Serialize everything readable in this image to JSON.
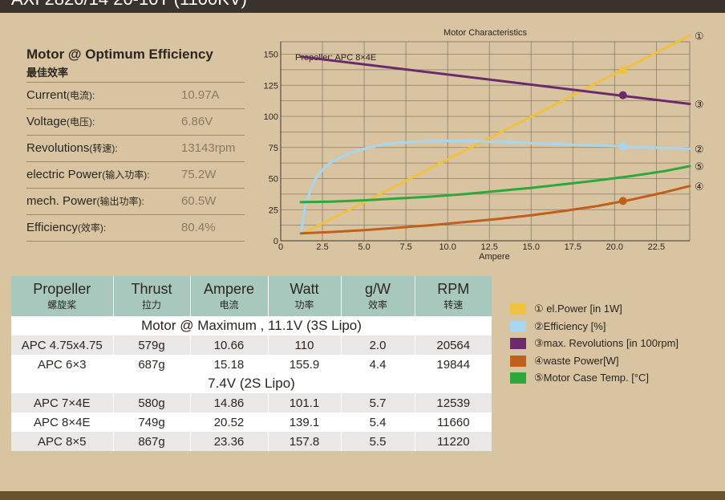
{
  "header": {
    "title": "AXI 2820/14 20-10T (1100KV)"
  },
  "efficiency": {
    "title": "Motor @ Optimum Efficiency",
    "subtitle": "最佳效率",
    "rows": [
      {
        "label": "Current",
        "label_cn": "(电流):",
        "value": "10.97A"
      },
      {
        "label": "Voltage",
        "label_cn": "(电压):",
        "value": "6.86V"
      },
      {
        "label": "Revolutions",
        "label_cn": "(转速):",
        "value": "13143rpm"
      },
      {
        "label": "electric Power",
        "label_cn": "(输入功率):",
        "value": "75.2W"
      },
      {
        "label": "mech. Power",
        "label_cn": "(输出功率):",
        "value": "60.5W"
      },
      {
        "label": "Efficiency",
        "label_cn": "(效率):",
        "value": "80.4%"
      }
    ]
  },
  "chart_data": {
    "type": "line",
    "title": "Motor Characteristics",
    "annotation": "Propeller:  APC 8×4E",
    "xlabel": "Ampere",
    "ylabel": "",
    "xlim": [
      0,
      24.5
    ],
    "ylim": [
      0,
      160
    ],
    "x_ticks": [
      0,
      2.5,
      5.0,
      7.5,
      10.0,
      12.5,
      15.0,
      17.5,
      20.0,
      22.5
    ],
    "x_tick_labels": [
      "0",
      "2.5",
      "5.0",
      "7.5",
      "10.0",
      "12.5",
      "15.0",
      "17.5",
      "20.0",
      "22.5"
    ],
    "y_ticks": [
      0,
      25,
      50,
      75,
      100,
      125,
      150
    ],
    "y_tick_labels": [
      "0",
      "25",
      "50",
      "75",
      "100",
      "125",
      "150"
    ],
    "grid": true,
    "marker_x": 20.5,
    "series": [
      {
        "id": "1",
        "marker": "①",
        "color": "#f0c040",
        "x": [
          1.2,
          24.5
        ],
        "y": [
          5,
          165
        ],
        "marker_y": 137
      },
      {
        "id": "3",
        "marker": "③",
        "color": "#6b2a6a",
        "x": [
          1.2,
          24.5
        ],
        "y": [
          148,
          110
        ],
        "marker_y": 117
      },
      {
        "id": "2",
        "marker": "②",
        "color": "#a8d6f0",
        "x": [
          1.2,
          1.5,
          2.0,
          2.5,
          3.0,
          4.0,
          5.0,
          6.0,
          7.0,
          8.0,
          9.0,
          10.0,
          11.0,
          12.0,
          14.0,
          16.0,
          18.0,
          20.0,
          22.0,
          24.5
        ],
        "y": [
          5,
          30,
          48,
          57,
          63,
          70,
          74,
          77,
          78.5,
          79.5,
          80,
          80.5,
          80.4,
          80,
          79,
          78,
          77,
          76,
          75,
          74
        ],
        "marker_y": 76
      },
      {
        "id": "5",
        "marker": "⑤",
        "color": "#2ea83a",
        "x": [
          1.2,
          3,
          5,
          7,
          9,
          11,
          13,
          15,
          17,
          19,
          21,
          23,
          24.5
        ],
        "y": [
          31,
          31.5,
          32.5,
          34,
          35.5,
          37.5,
          40,
          42.5,
          45.5,
          48.5,
          52,
          56,
          60
        ]
      },
      {
        "id": "4",
        "marker": "④",
        "color": "#c0601c",
        "x": [
          1.2,
          3,
          5,
          7,
          9,
          11,
          13,
          15,
          17,
          19,
          21,
          23,
          24.5
        ],
        "y": [
          6,
          7,
          8.5,
          10.5,
          12.5,
          15,
          17.5,
          20.5,
          24,
          28,
          33,
          39,
          44
        ],
        "marker_y": 32
      }
    ]
  },
  "table": {
    "columns": [
      {
        "main": "Propeller",
        "sub": "螺旋桨"
      },
      {
        "main": "Thrust",
        "sub": "拉力"
      },
      {
        "main": "Ampere",
        "sub": "电流"
      },
      {
        "main": "Watt",
        "sub": "功率"
      },
      {
        "main": "g/W",
        "sub": "效率"
      },
      {
        "main": "RPM",
        "sub": "转速"
      }
    ],
    "groups": [
      {
        "title": "Motor @ Maximum , 11.1V (3S Lipo)",
        "rows": [
          [
            "APC 4.75x4.75",
            "579g",
            "10.66",
            "110",
            "2.0",
            "20564"
          ],
          [
            "APC 6×3",
            "687g",
            "15.18",
            "155.9",
            "4.4",
            "19844"
          ]
        ]
      },
      {
        "title": "7.4V (2S Lipo)",
        "rows": [
          [
            "APC 7×4E",
            "580g",
            "14.86",
            "101.1",
            "5.7",
            "12539"
          ],
          [
            "APC 8×4E",
            "749g",
            "20.52",
            "139.1",
            "5.4",
            "11660"
          ],
          [
            "APC 8×5",
            "867g",
            "23.36",
            "157.8",
            "5.5",
            "11220"
          ]
        ]
      }
    ]
  },
  "legend": [
    {
      "label": "① el.Power [in 1W]",
      "color": "#f0c040"
    },
    {
      "label": "②Efficiency [%]",
      "color": "#a8d6f0"
    },
    {
      "label": "③max. Revolutions [in 100rpm]",
      "color": "#6b2a6a"
    },
    {
      "label": "④waste Power[W]",
      "color": "#c0601c"
    },
    {
      "label": "⑤Motor Case Temp. [°C]",
      "color": "#2ea83a"
    }
  ]
}
